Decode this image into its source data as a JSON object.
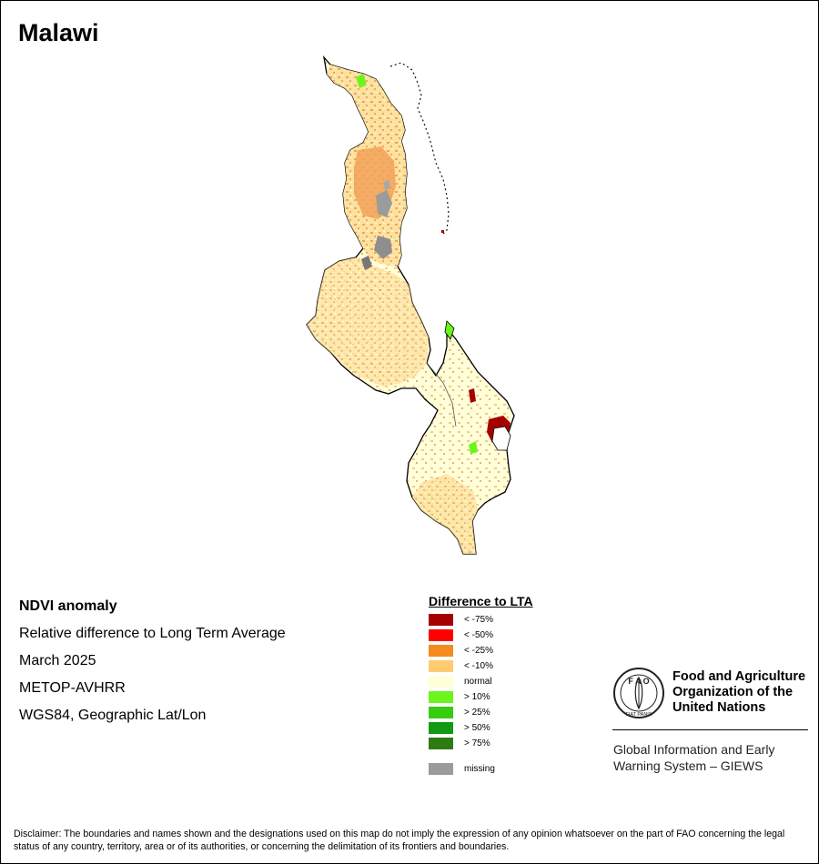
{
  "title": "Malawi",
  "info": {
    "heading": "NDVI anomaly",
    "subtitle": "Relative difference to Long Term Average",
    "date": "March 2025",
    "sensor": "METOP-AVHRR",
    "projection": "WGS84, Geographic Lat/Lon"
  },
  "legend": {
    "title": "Difference to LTA",
    "items": [
      {
        "label": "< -75%",
        "color": "#a50000"
      },
      {
        "label": "< -50%",
        "color": "#ff0000"
      },
      {
        "label": "< -25%",
        "color": "#f58a1f"
      },
      {
        "label": "< -10%",
        "color": "#fecb6e"
      },
      {
        "label": "normal",
        "color": "#ffffd9"
      },
      {
        "label": "> 10%",
        "color": "#6cf51c"
      },
      {
        "label": "> 25%",
        "color": "#36cc10"
      },
      {
        "label": "> 50%",
        "color": "#129a12"
      },
      {
        "label": "> 75%",
        "color": "#2d7c12"
      }
    ],
    "missing": {
      "label": "missing",
      "color": "#9b9b9b"
    }
  },
  "fao": {
    "logo_letters": "F A O",
    "logo_motto": "FIAT PANIS",
    "name_lines": [
      "Food and Agriculture",
      "Organization of the",
      "United Nations"
    ],
    "giews_lines": [
      "Global Information and Early",
      "Warning System – GIEWS"
    ]
  },
  "disclaimer": "Disclaimer: The boundaries and names shown and the designations used on this map do not imply the expression of any opinion whatsoever on the part of FAO concerning the legal status of any country, territory, area or of its authorities, or concerning the delimitation of its frontiers and boundaries."
}
